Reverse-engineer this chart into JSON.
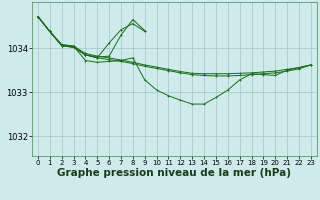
{
  "background_color": "#ceeaea",
  "grid_color": "#aacccc",
  "line_color": "#1a6b1a",
  "xlabel": "Graphe pression niveau de la mer (hPa)",
  "xlabel_fontsize": 7.5,
  "ytick_labels": [
    "1032",
    "1033",
    "1034"
  ],
  "ytick_vals": [
    1032,
    1033,
    1034
  ],
  "xtick_vals": [
    0,
    1,
    2,
    3,
    4,
    5,
    6,
    7,
    8,
    9,
    10,
    11,
    12,
    13,
    14,
    15,
    16,
    17,
    18,
    19,
    20,
    21,
    22,
    23
  ],
  "xlim": [
    -0.5,
    23.5
  ],
  "ylim": [
    1031.55,
    1035.05
  ],
  "lines": [
    {
      "x": [
        0,
        1,
        2,
        3,
        4,
        5,
        6,
        7,
        8,
        9,
        10,
        11,
        12,
        13,
        14,
        15,
        16,
        17,
        18,
        19,
        20,
        21,
        22,
        23
      ],
      "y": [
        1034.72,
        1034.38,
        1034.08,
        1034.05,
        1033.88,
        1033.82,
        1033.78,
        1033.73,
        1033.68,
        1033.62,
        1033.57,
        1033.52,
        1033.47,
        1033.43,
        1033.42,
        1033.42,
        1033.42,
        1033.43,
        1033.44,
        1033.46,
        1033.48,
        1033.52,
        1033.56,
        1033.62
      ],
      "has_markers": true
    },
    {
      "x": [
        0,
        1,
        2,
        3,
        4,
        5,
        6,
        7,
        8,
        9,
        10,
        11,
        12,
        13,
        14,
        15,
        16,
        17,
        18,
        19,
        20,
        21,
        22,
        23
      ],
      "y": [
        1034.72,
        1034.38,
        1034.06,
        1034.02,
        1033.85,
        1033.78,
        1033.74,
        1033.7,
        1033.65,
        1033.59,
        1033.54,
        1033.49,
        1033.44,
        1033.4,
        1033.38,
        1033.37,
        1033.37,
        1033.38,
        1033.4,
        1033.42,
        1033.44,
        1033.48,
        1033.53,
        1033.62
      ],
      "has_markers": true
    },
    {
      "x": [
        0,
        1,
        2,
        3,
        4,
        5,
        6,
        7,
        8,
        9
      ],
      "y": [
        1034.72,
        1034.38,
        1034.06,
        1034.02,
        1033.85,
        1033.78,
        1034.12,
        1034.42,
        1034.56,
        1034.38
      ],
      "has_markers": true
    },
    {
      "x": [
        0,
        1,
        2,
        3,
        4,
        5,
        6,
        7,
        8,
        9
      ],
      "y": [
        1034.72,
        1034.38,
        1034.06,
        1034.02,
        1033.85,
        1033.8,
        1033.82,
        1034.3,
        1034.65,
        1034.4
      ],
      "has_markers": true
    },
    {
      "x": [
        0,
        1,
        2,
        3,
        4,
        5,
        6,
        7,
        8,
        9,
        10,
        11,
        12,
        13,
        14,
        15,
        16,
        17,
        18,
        19,
        20,
        21,
        22,
        23
      ],
      "y": [
        1034.72,
        1034.38,
        1034.08,
        1034.05,
        1033.72,
        1033.68,
        1033.7,
        1033.72,
        1033.78,
        1033.28,
        1033.05,
        1032.92,
        1032.82,
        1032.73,
        1032.73,
        1032.88,
        1033.05,
        1033.28,
        1033.42,
        1033.4,
        1033.38,
        1033.5,
        1033.56,
        1033.62
      ],
      "has_markers": true
    }
  ]
}
